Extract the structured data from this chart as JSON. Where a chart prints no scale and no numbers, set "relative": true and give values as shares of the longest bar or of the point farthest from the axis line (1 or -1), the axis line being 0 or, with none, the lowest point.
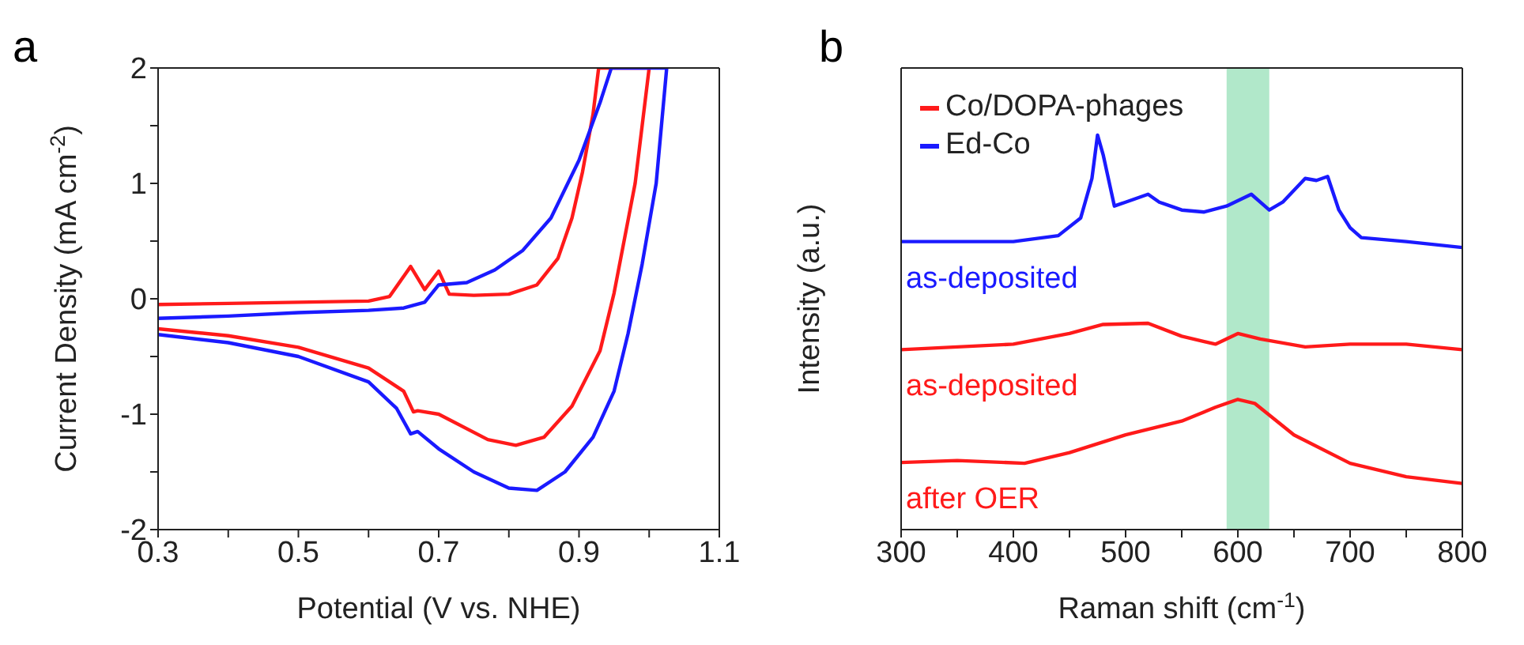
{
  "chart_data": [
    {
      "type": "line",
      "title": "a",
      "xlabel": "Potential (V vs. NHE)",
      "ylabel": "Current Density (mA cm$^{-2}$)",
      "xlim": [
        0.3,
        1.1
      ],
      "ylim": [
        -2,
        2
      ],
      "xticks": [
        0.3,
        {
          "value": 0.4,
          "label": null
        },
        0.5,
        {
          "value": 0.6,
          "label": null
        },
        0.7,
        {
          "value": 0.8,
          "label": null
        },
        0.9,
        {
          "value": 1.0,
          "label": null
        },
        1.1
      ],
      "yticks": [
        -2,
        {
          "value": -1.5,
          "label": null
        },
        -1,
        {
          "value": -0.5,
          "label": null
        },
        0,
        {
          "value": 0.5,
          "label": null
        },
        1,
        {
          "value": 1.5,
          "label": null
        },
        2
      ],
      "grid": false,
      "legend": false,
      "marker": "none",
      "line_style": "solid",
      "series": [
        {
          "color": "#ff1a1a",
          "x": [
            0.3,
            0.4,
            0.5,
            0.6,
            0.63,
            0.66,
            0.68,
            0.7,
            0.715,
            0.75,
            0.8,
            0.84,
            0.87,
            0.89,
            0.905,
            0.92,
            0.928,
            1.0,
            0.98,
            0.95,
            0.93,
            0.89,
            0.85,
            0.81,
            0.77,
            0.7,
            0.67,
            0.664,
            0.65,
            0.6,
            0.5,
            0.4,
            0.3
          ],
          "values": [
            -0.05,
            -0.04,
            -0.03,
            -0.02,
            0.02,
            0.28,
            0.08,
            0.24,
            0.04,
            0.03,
            0.04,
            0.12,
            0.35,
            0.7,
            1.1,
            1.6,
            2,
            2,
            1,
            0.05,
            -0.45,
            -0.93,
            -1.2,
            -1.27,
            -1.22,
            -1.0,
            -0.97,
            -0.98,
            -0.8,
            -0.6,
            -0.42,
            -0.32,
            -0.26
          ]
        },
        {
          "color": "#1a1aff",
          "x": [
            0.3,
            0.4,
            0.5,
            0.6,
            0.65,
            0.68,
            0.7,
            0.74,
            0.78,
            0.82,
            0.86,
            0.9,
            0.93,
            0.946,
            1.025,
            1.01,
            0.99,
            0.97,
            0.95,
            0.92,
            0.88,
            0.84,
            0.8,
            0.75,
            0.7,
            0.67,
            0.66,
            0.64,
            0.6,
            0.5,
            0.4,
            0.3
          ],
          "values": [
            -0.17,
            -0.15,
            -0.12,
            -0.1,
            -0.08,
            -0.03,
            0.12,
            0.14,
            0.25,
            0.42,
            0.7,
            1.2,
            1.7,
            2,
            2,
            1,
            0.3,
            -0.3,
            -0.8,
            -1.2,
            -1.5,
            -1.66,
            -1.64,
            -1.5,
            -1.3,
            -1.15,
            -1.17,
            -0.95,
            -0.72,
            -0.5,
            -0.38,
            -0.31
          ]
        }
      ]
    },
    {
      "type": "line",
      "title": "b",
      "xlabel": "Raman shift (cm$^{-1}$)",
      "ylabel": "Intensity (a.u.)",
      "relative": true,
      "xlim": [
        300,
        800
      ],
      "xticks": [
        300,
        {
          "value": 350,
          "label": null
        },
        400,
        {
          "value": 450,
          "label": null
        },
        500,
        {
          "value": 550,
          "label": null
        },
        600,
        {
          "value": 650,
          "label": null
        },
        700,
        {
          "value": 750,
          "label": null
        },
        800
      ],
      "grid": false,
      "legend": "top left",
      "marker": "none",
      "line_style": "solid",
      "bands": [
        {
          "axis": "x",
          "from": 590,
          "to": 628,
          "color": "#a8e6c4"
        }
      ],
      "annotations": [
        "as-deposited",
        "as-deposited",
        "after OER"
      ],
      "series": [
        {
          "name": "Co/DOPA-phages",
          "color": "#ff1a1a",
          "x": [
            300,
            400,
            450,
            480,
            520,
            550,
            580,
            600,
            620,
            660,
            700,
            750,
            800
          ],
          "values": [
            0.456,
            0.47,
            0.497,
            0.52,
            0.523,
            0.49,
            0.47,
            0.497,
            0.483,
            0.463,
            0.47,
            0.47,
            0.456
          ]
        },
        {
          "name": "Ed-Co",
          "color": "#1a1aff",
          "x": [
            300,
            350,
            400,
            440,
            460,
            470,
            475,
            480,
            490,
            500,
            520,
            530,
            550,
            570,
            590,
            612,
            628,
            640,
            660,
            670,
            680,
            690,
            700,
            710,
            750,
            800
          ],
          "values": [
            0.73,
            0.73,
            0.73,
            0.745,
            0.79,
            0.89,
            1.0,
            0.95,
            0.82,
            0.83,
            0.85,
            0.83,
            0.81,
            0.805,
            0.82,
            0.85,
            0.81,
            0.83,
            0.89,
            0.885,
            0.895,
            0.81,
            0.765,
            0.74,
            0.73,
            0.715
          ]
        },
        {
          "color": "#ff1a1a",
          "x": [
            300,
            350,
            410,
            450,
            500,
            550,
            580,
            600,
            615,
            650,
            700,
            750,
            800
          ],
          "values": [
            0.17,
            0.175,
            0.168,
            0.195,
            0.24,
            0.275,
            0.31,
            0.33,
            0.32,
            0.24,
            0.168,
            0.134,
            0.117
          ]
        }
      ]
    }
  ]
}
